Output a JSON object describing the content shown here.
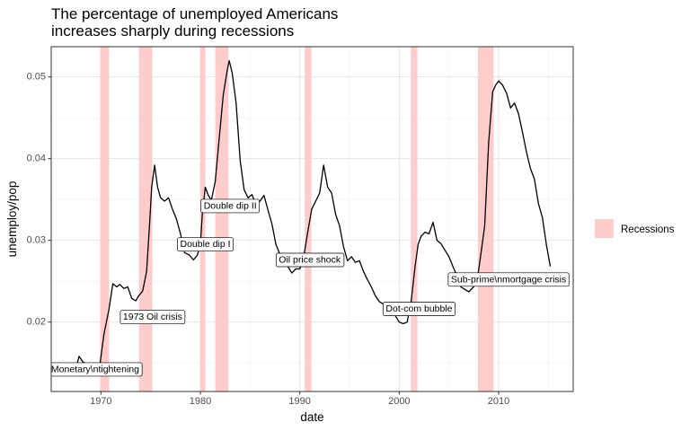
{
  "chart_data": {
    "type": "line",
    "title": "The percentage of unemployed Americans\n increases sharply during recessions",
    "xlabel": "date",
    "ylabel": "unemploy/pop",
    "xlim": [
      1965,
      2017.5
    ],
    "ylim": [
      0.0115,
      0.0537
    ],
    "x_ticks": [
      1970,
      1980,
      1990,
      2000,
      2010
    ],
    "y_ticks": [
      0.02,
      0.03,
      0.04,
      0.05
    ],
    "x_tick_labels": [
      "1970",
      "1980",
      "1990",
      "2000",
      "2010"
    ],
    "y_tick_labels": [
      "0.02",
      "0.03",
      "0.04",
      "0.05"
    ],
    "grid": true,
    "legend": {
      "placement": "right",
      "entries": [
        {
          "label": "Recessions",
          "color": "#ffcccc"
        }
      ]
    },
    "recessions": [
      {
        "start": 1969.92,
        "end": 1970.83
      },
      {
        "start": 1973.83,
        "end": 1975.17
      },
      {
        "start": 1980.0,
        "end": 1980.5
      },
      {
        "start": 1981.5,
        "end": 1982.83
      },
      {
        "start": 1990.5,
        "end": 1991.17
      },
      {
        "start": 2001.17,
        "end": 2001.83
      },
      {
        "start": 2007.92,
        "end": 2009.5
      }
    ],
    "series": [
      {
        "color": "#000000",
        "x": [
          1965.0,
          1966.0,
          1967.0,
          1967.6,
          1967.8,
          1968.2,
          1969.0,
          1969.6,
          1969.9,
          1970.3,
          1970.8,
          1971.2,
          1971.6,
          1971.9,
          1972.3,
          1972.7,
          1973.1,
          1973.5,
          1973.8,
          1974.2,
          1974.6,
          1974.9,
          1975.1,
          1975.4,
          1975.7,
          1976.0,
          1976.4,
          1976.8,
          1977.2,
          1977.6,
          1978.0,
          1978.4,
          1978.9,
          1979.3,
          1979.7,
          1980.0,
          1980.2,
          1980.5,
          1980.8,
          1981.1,
          1981.5,
          1981.9,
          1982.3,
          1982.7,
          1982.9,
          1983.2,
          1983.6,
          1984.0,
          1984.4,
          1984.8,
          1985.2,
          1985.6,
          1986.0,
          1986.4,
          1986.8,
          1987.2,
          1987.6,
          1988.0,
          1988.4,
          1988.8,
          1989.2,
          1989.6,
          1990.0,
          1990.4,
          1990.8,
          1991.2,
          1991.6,
          1992.0,
          1992.4,
          1992.8,
          1993.2,
          1993.6,
          1994.0,
          1994.4,
          1994.8,
          1995.2,
          1995.6,
          1996.0,
          1996.4,
          1996.8,
          1997.2,
          1997.6,
          1998.0,
          1998.4,
          1998.8,
          1999.2,
          1999.6,
          2000.0,
          2000.4,
          2000.8,
          2001.2,
          2001.6,
          2001.9,
          2002.2,
          2002.6,
          2003.0,
          2003.4,
          2003.8,
          2004.2,
          2004.6,
          2005.0,
          2005.4,
          2005.8,
          2006.2,
          2006.6,
          2007.0,
          2007.4,
          2007.8,
          2008.2,
          2008.6,
          2009.0,
          2009.4,
          2009.7,
          2010.0,
          2010.4,
          2010.8,
          2011.2,
          2011.6,
          2012.0,
          2012.4,
          2012.8,
          2013.2,
          2013.6,
          2014.0,
          2014.4,
          2014.8,
          2015.2
        ],
        "y": [
          0.0148,
          0.0147,
          0.0146,
          0.0149,
          0.0158,
          0.0151,
          0.0146,
          0.0145,
          0.0148,
          0.0185,
          0.0215,
          0.0247,
          0.0243,
          0.0246,
          0.0241,
          0.0243,
          0.0229,
          0.0226,
          0.0232,
          0.0238,
          0.0262,
          0.0322,
          0.0365,
          0.0392,
          0.0365,
          0.0352,
          0.0348,
          0.0352,
          0.0338,
          0.0326,
          0.0308,
          0.0285,
          0.0282,
          0.0276,
          0.0282,
          0.0294,
          0.0332,
          0.0365,
          0.0355,
          0.0349,
          0.0372,
          0.0425,
          0.0478,
          0.0508,
          0.052,
          0.0505,
          0.0468,
          0.0398,
          0.0362,
          0.0352,
          0.0356,
          0.0343,
          0.0348,
          0.0355,
          0.0337,
          0.032,
          0.0295,
          0.0283,
          0.0275,
          0.0268,
          0.026,
          0.0265,
          0.0265,
          0.028,
          0.031,
          0.0338,
          0.0348,
          0.0358,
          0.0392,
          0.0365,
          0.0358,
          0.0332,
          0.0318,
          0.0292,
          0.0275,
          0.028,
          0.0273,
          0.0275,
          0.0262,
          0.0252,
          0.0243,
          0.0232,
          0.0225,
          0.0222,
          0.0217,
          0.0215,
          0.0208,
          0.02,
          0.0198,
          0.02,
          0.0225,
          0.0268,
          0.0295,
          0.0305,
          0.031,
          0.0308,
          0.0322,
          0.03,
          0.0296,
          0.0288,
          0.028,
          0.0268,
          0.0257,
          0.0243,
          0.024,
          0.0237,
          0.0242,
          0.0248,
          0.0282,
          0.0318,
          0.042,
          0.0482,
          0.049,
          0.0495,
          0.049,
          0.048,
          0.0462,
          0.0468,
          0.0455,
          0.0432,
          0.0408,
          0.0388,
          0.0375,
          0.0345,
          0.0328,
          0.0295,
          0.0268
        ]
      }
    ],
    "annotations": [
      {
        "x": 1968.0,
        "y": 0.0142,
        "text": "scal & Monetary\\ntightening"
      },
      {
        "x": 1975.2,
        "y": 0.0206,
        "text": "1973 Oil crisis"
      },
      {
        "x": 1980.5,
        "y": 0.0295,
        "text": "Double dip I"
      },
      {
        "x": 1983.0,
        "y": 0.0342,
        "text": "Double dip II"
      },
      {
        "x": 1991.0,
        "y": 0.0276,
        "text": "Oil price shock"
      },
      {
        "x": 2002.0,
        "y": 0.0216,
        "text": "Dot-com bubble"
      },
      {
        "x": 2011.0,
        "y": 0.0252,
        "text": "Sub-prime\\nmortgage crisis"
      }
    ]
  }
}
